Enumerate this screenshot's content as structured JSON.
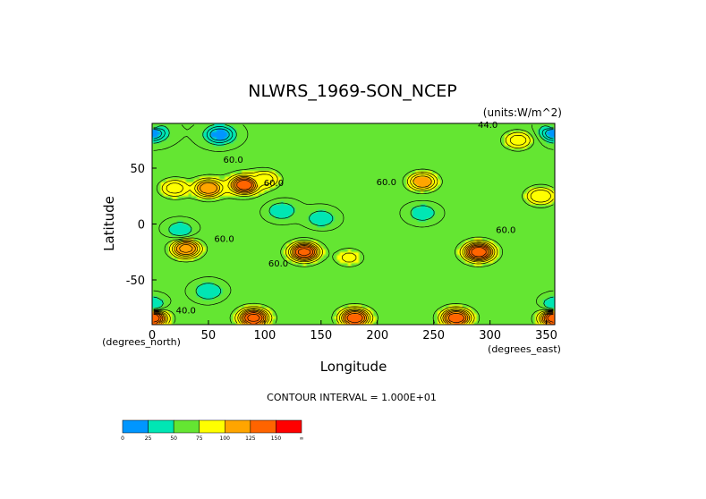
{
  "chart_data": {
    "type": "heatmap",
    "title": "NLWRS_1969-SON_NCEP",
    "units": "(units:W/m^2)",
    "xlabel": "Longitude",
    "ylabel": "Latitude",
    "x_unit": "(degrees_east)",
    "y_unit": "(degrees_north)",
    "xlim": [
      0,
      357.5
    ],
    "ylim": [
      -90,
      90
    ],
    "x_ticks": [
      0,
      50,
      100,
      150,
      200,
      250,
      300,
      350
    ],
    "y_ticks": [
      50,
      0,
      -50
    ],
    "contour_interval": "CONTOUR INTERVAL = 1.000E+01",
    "contour_labels": [
      {
        "text": "60.0",
        "x": 72,
        "y": 55
      },
      {
        "text": "60.0",
        "x": 108,
        "y": 34
      },
      {
        "text": "60.0",
        "x": 208,
        "y": 35
      },
      {
        "text": "60.0",
        "x": 64,
        "y": -16
      },
      {
        "text": "60.0",
        "x": 112,
        "y": -38
      },
      {
        "text": "44.0",
        "x": 298,
        "y": 86
      },
      {
        "text": "60.0",
        "x": 314,
        "y": -8
      },
      {
        "text": "40.0",
        "x": 30,
        "y": -80
      }
    ],
    "colorbar": {
      "levels": [
        "0",
        "25",
        "50",
        "75",
        "100",
        "125",
        "150",
        "∞"
      ],
      "colors": [
        "#0096ff",
        "#00e6b4",
        "#64e632",
        "#ffff00",
        "#ffa500",
        "#ff6400",
        "#ff0000"
      ]
    },
    "fields": [
      {
        "lon": 0,
        "lat": 88,
        "value": 55
      },
      {
        "lon": 357.5,
        "lat": 88,
        "value": 55
      },
      {
        "lon": 0,
        "lat": 82,
        "value": 15
      },
      {
        "lon": 357.5,
        "lat": 82,
        "value": 15
      },
      {
        "lon": 60,
        "lat": 80,
        "value": 20
      },
      {
        "lon": 20,
        "lat": 32,
        "value": 95
      },
      {
        "lon": 50,
        "lat": 32,
        "value": 120
      },
      {
        "lon": 82,
        "lat": 35,
        "value": 140
      },
      {
        "lon": 100,
        "lat": 40,
        "value": 95
      },
      {
        "lon": 240,
        "lat": 38,
        "value": 110
      },
      {
        "lon": 345,
        "lat": 25,
        "value": 100
      },
      {
        "lon": 325,
        "lat": 75,
        "value": 95
      },
      {
        "lon": 30,
        "lat": -22,
        "value": 125
      },
      {
        "lon": 135,
        "lat": -25,
        "value": 145
      },
      {
        "lon": 290,
        "lat": -25,
        "value": 150
      },
      {
        "lon": 175,
        "lat": -30,
        "value": 82
      },
      {
        "lon": 115,
        "lat": 12,
        "value": 40
      },
      {
        "lon": 150,
        "lat": 5,
        "value": 42
      },
      {
        "lon": 240,
        "lat": 10,
        "value": 42
      },
      {
        "lon": 25,
        "lat": -5,
        "value": 42
      },
      {
        "lon": 50,
        "lat": -60,
        "value": 40
      },
      {
        "lon": 0,
        "lat": -72,
        "value": 40
      },
      {
        "lon": 357.5,
        "lat": -72,
        "value": 40
      },
      {
        "lon": 0,
        "lat": -84,
        "value": 150
      },
      {
        "lon": 357.5,
        "lat": -84,
        "value": 150
      },
      {
        "lon": 180,
        "lat": -84,
        "value": 140
      },
      {
        "lon": 90,
        "lat": -84,
        "value": 145
      },
      {
        "lon": 270,
        "lat": -84,
        "value": 140
      }
    ]
  }
}
